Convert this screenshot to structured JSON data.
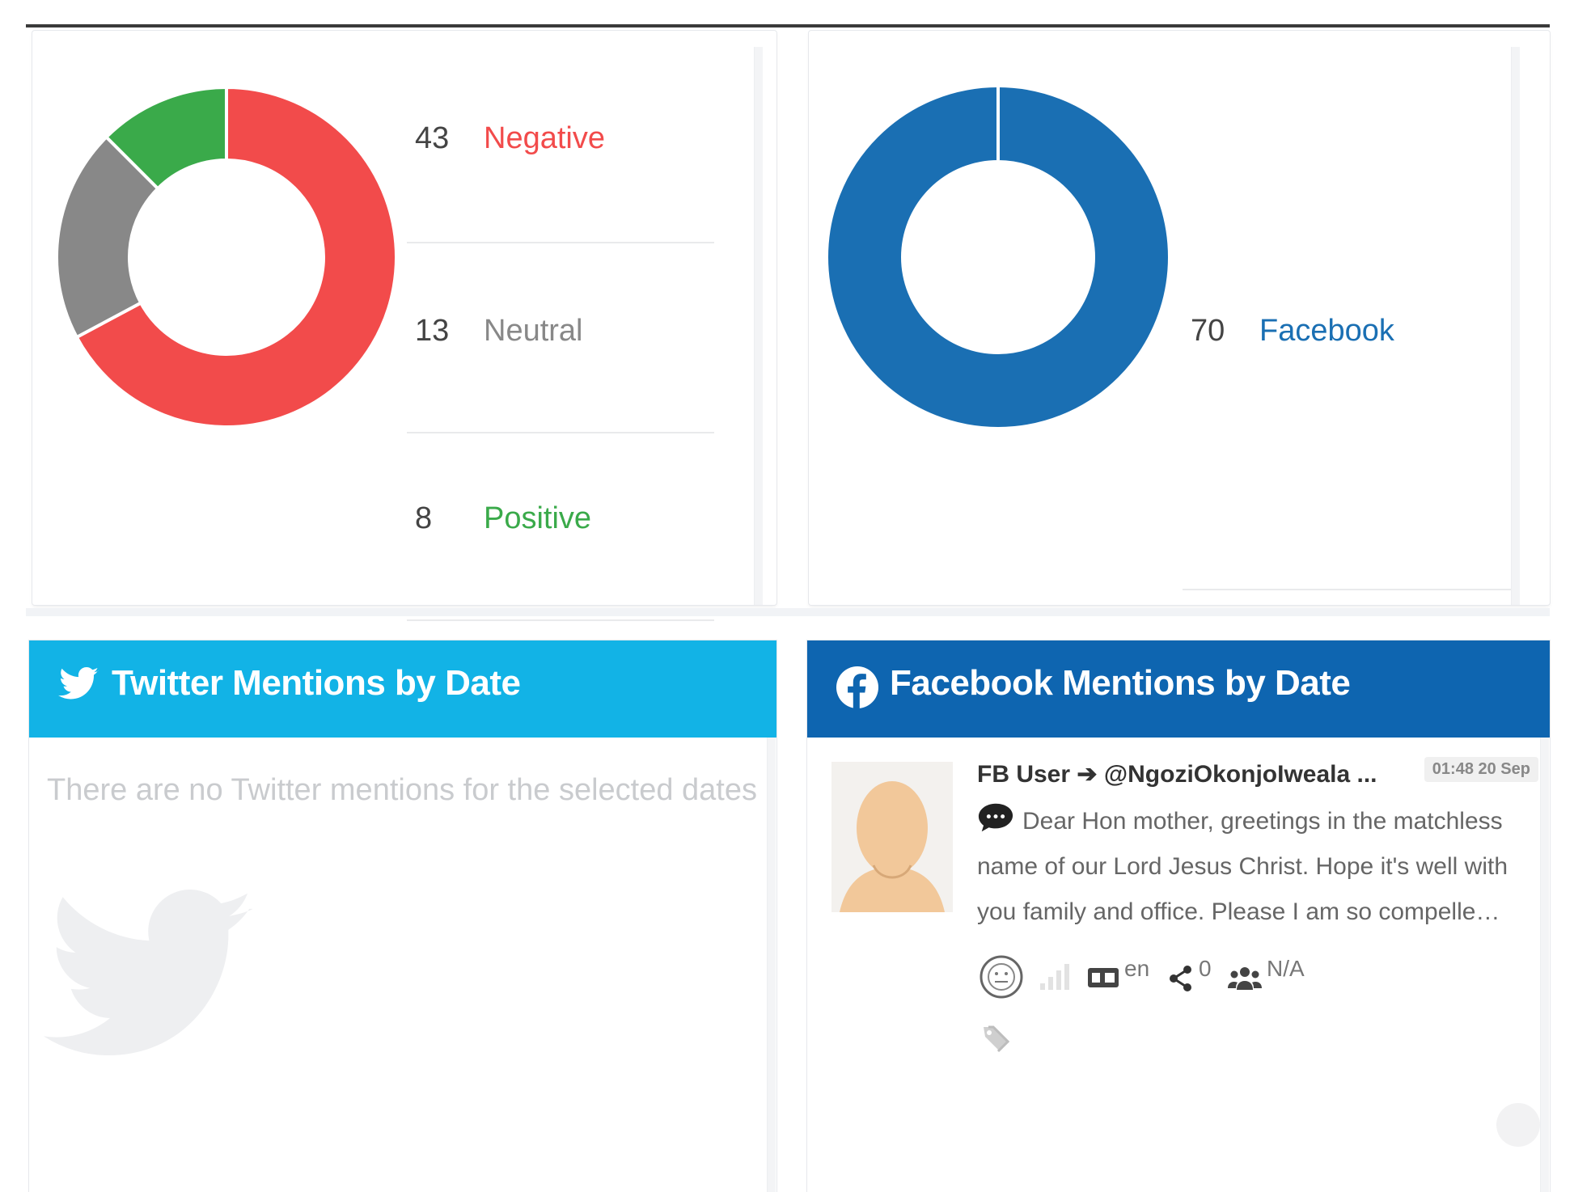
{
  "sentiment": {
    "items": [
      {
        "count": "43",
        "label": "Negative",
        "color": "#f24b4b"
      },
      {
        "count": "13",
        "label": "Neutral",
        "color": "#888888"
      },
      {
        "count": "8",
        "label": "Positive",
        "color": "#3aaa4a"
      }
    ]
  },
  "sources": {
    "items": [
      {
        "count": "70",
        "label": "Facebook",
        "color": "#1a6fb3"
      }
    ]
  },
  "twitter_panel": {
    "title": "Twitter Mentions by Date",
    "empty_message": "There are no Twitter mentions for the selected dates",
    "header_color": "#12b3e6"
  },
  "facebook_panel": {
    "title": "Facebook Mentions by Date",
    "header_color": "#0e65b0",
    "post": {
      "author": "FB User",
      "target": "@NgoziOkonjoIweala ...",
      "timestamp": "01:48 20 Sep",
      "text": "Dear Hon mother, greetings in the matchless name of our Lord Jesus Christ. Hope it's well with you family and office. Please I am so compelle…",
      "language": "en",
      "shares": "0",
      "audience": "N/A"
    }
  },
  "chart_data": [
    {
      "type": "pie",
      "categories": [
        "Negative",
        "Neutral",
        "Positive"
      ],
      "values": [
        43,
        13,
        8
      ],
      "colors": [
        "#f24b4b",
        "#888888",
        "#3aaa4a"
      ]
    },
    {
      "type": "pie",
      "categories": [
        "Facebook"
      ],
      "values": [
        70
      ],
      "colors": [
        "#1a6fb3"
      ]
    }
  ]
}
